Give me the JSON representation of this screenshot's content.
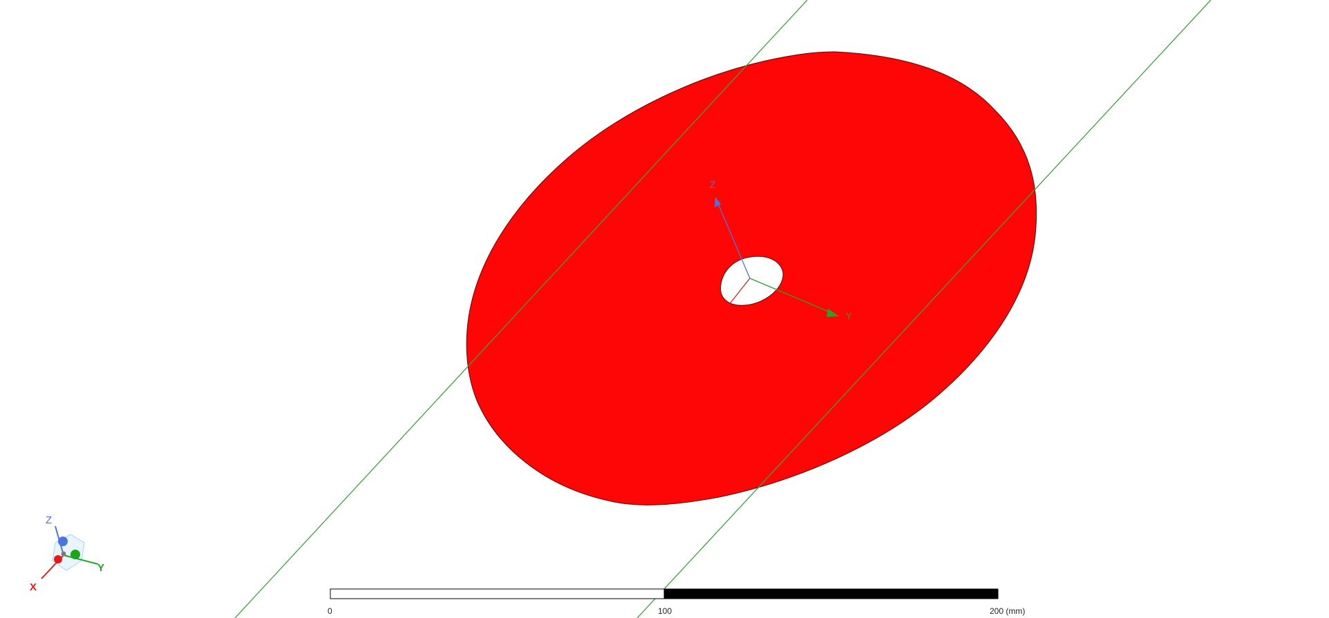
{
  "viewport": {
    "background_color": "#ffffff"
  },
  "model": {
    "disc_color": "#ff0606",
    "disc_edge_color": "#5a0000",
    "hole_color": "#ffffff",
    "plane_line_color": "#3f9f3f"
  },
  "local_axes": {
    "z_label": "Z",
    "y_label": "Y",
    "x_color": "#e02020",
    "y_color": "#2e9e2e",
    "z_color": "#4a74e0"
  },
  "triad": {
    "z_label": "Z",
    "y_label": "Y",
    "x_label": "X",
    "x_color": "#e81818",
    "y_color": "#1aa51a",
    "z_color": "#4a74e0"
  },
  "scale_bar": {
    "tick_start": "0",
    "tick_mid": "100",
    "tick_end": "200 (mm)"
  }
}
